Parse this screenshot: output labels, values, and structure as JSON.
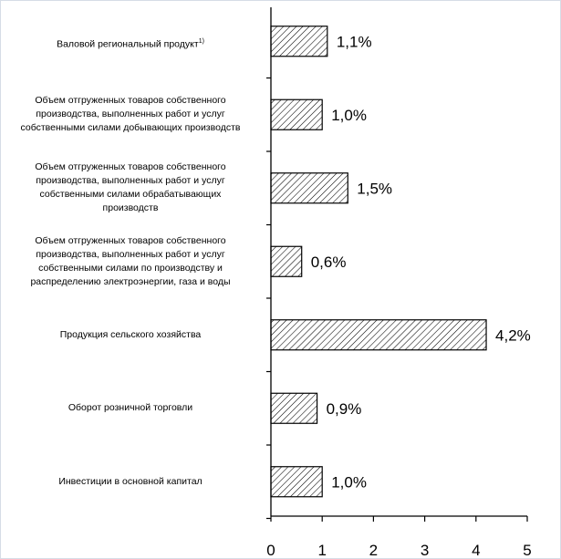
{
  "chart_data": {
    "type": "bar",
    "orientation": "horizontal",
    "categories": [
      "Валовой региональный продукт",
      "Объем отгруженных товаров собственного\nпроизводства, выполненных работ и услуг\nсобственными силами добывающих производств",
      "Объем отгруженных товаров собственного\nпроизводства, выполненных работ и услуг\nсобственными силами  обрабатывающих\nпроизводств",
      "Объем отгруженных товаров собственного\nпроизводства, выполненных работ и услуг\nсобственными силами  по производству  и\nраспределению электроэнергии, газа и воды",
      "Продукция сельского хозяйства",
      "Оборот розничной торговли",
      "Инвестиции в основной капитал"
    ],
    "footnote_marks": [
      "1)",
      "",
      "",
      "",
      "",
      "",
      ""
    ],
    "values": [
      1.1,
      1.0,
      1.5,
      0.6,
      4.2,
      0.9,
      1.0
    ],
    "value_labels": [
      "1,1%",
      "1,0%",
      "1,5%",
      "0,6%",
      "4,2%",
      "0,9%",
      "1,0%"
    ],
    "xlim": [
      0,
      5
    ],
    "xticks": [
      "0",
      "1",
      "2",
      "3",
      "4",
      "5"
    ],
    "grid": false,
    "bar_fill": "hatched",
    "colors": {
      "bar_stroke": "#000000",
      "hatch": "#000000",
      "background": "#ffffff"
    }
  }
}
